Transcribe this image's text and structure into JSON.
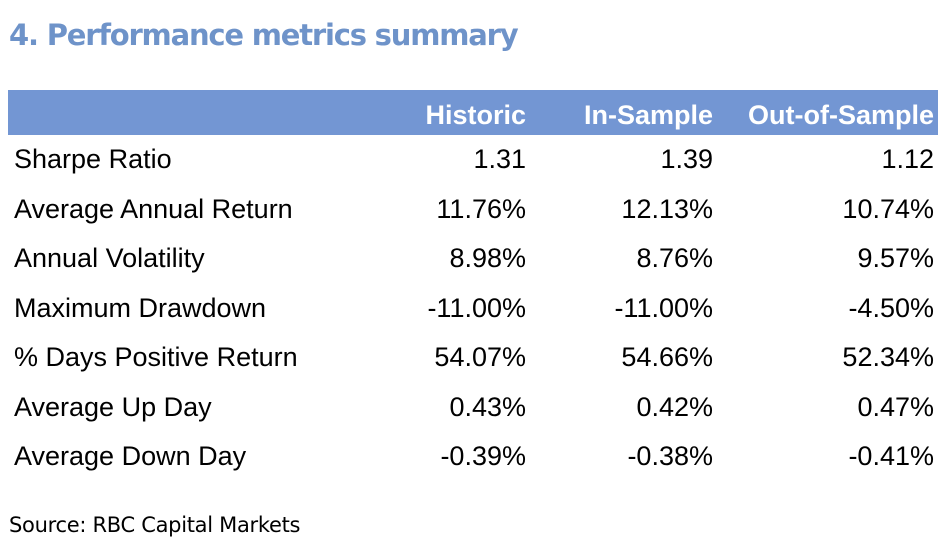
{
  "title": "4. Performance metrics summary",
  "table": {
    "header_color": "#7396d3",
    "columns": [
      "",
      "Historic",
      "In-Sample",
      "Out-of-Sample"
    ],
    "rows": [
      {
        "label": "Sharpe Ratio",
        "historic": "1.31",
        "in_sample": "1.39",
        "out_of_sample": "1.12"
      },
      {
        "label": "Average Annual Return",
        "historic": "11.76%",
        "in_sample": "12.13%",
        "out_of_sample": "10.74%"
      },
      {
        "label": "Annual Volatility",
        "historic": "8.98%",
        "in_sample": "8.76%",
        "out_of_sample": "9.57%"
      },
      {
        "label": "Maximum Drawdown",
        "historic": "-11.00%",
        "in_sample": "-11.00%",
        "out_of_sample": "-4.50%"
      },
      {
        "label": "% Days Positive Return",
        "historic": "54.07%",
        "in_sample": "54.66%",
        "out_of_sample": "52.34%"
      },
      {
        "label": "Average Up Day",
        "historic": "0.43%",
        "in_sample": "0.42%",
        "out_of_sample": "0.47%"
      },
      {
        "label": "Average Down Day",
        "historic": "-0.39%",
        "in_sample": "-0.38%",
        "out_of_sample": "-0.41%"
      }
    ]
  },
  "source": "Source: RBC Capital Markets"
}
